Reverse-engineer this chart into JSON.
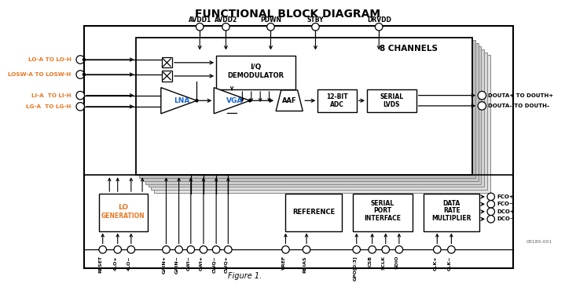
{
  "title": "FUNCTIONAL BLOCK DIAGRAM",
  "bg_color": "#ffffff",
  "black": "#000000",
  "orange": "#E87722",
  "blue": "#1a66cc",
  "gray_stack": "#d0d0d0",
  "fig_label": "Figure 1.",
  "watermark": "08180-001"
}
